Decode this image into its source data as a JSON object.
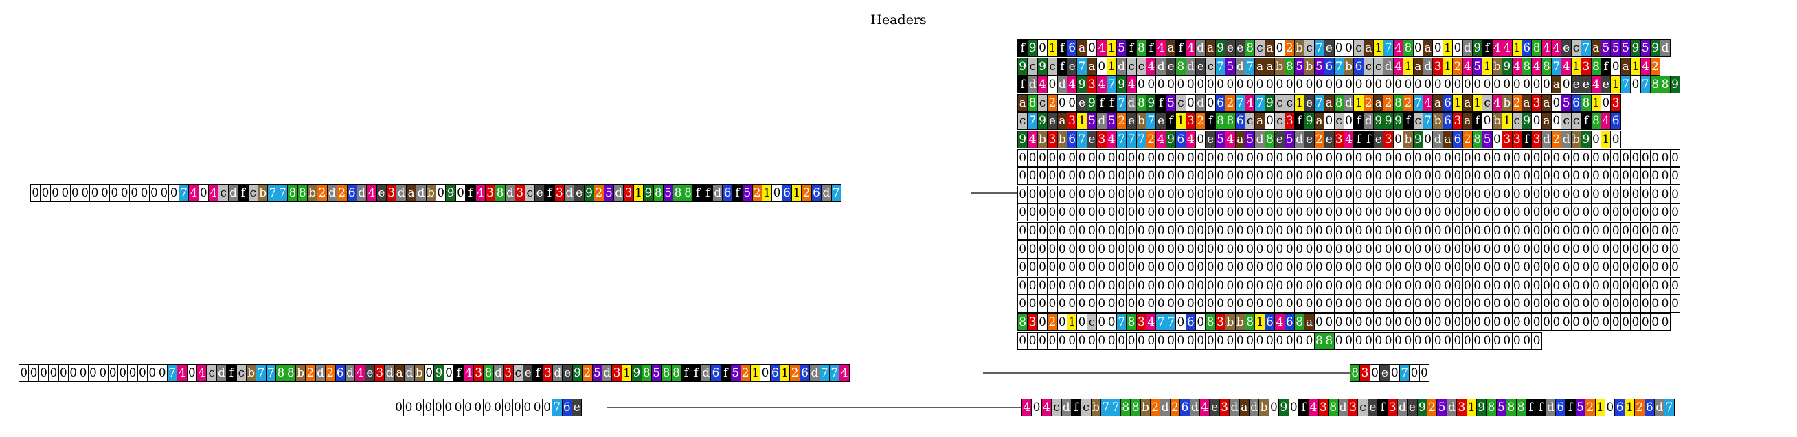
{
  "title": "Headers",
  "palette": {
    "0": "#ffffff",
    "1": "#ffee00",
    "2": "#ef6a00",
    "3": "#dd0000",
    "4": "#e6007e",
    "5": "#6a00c8",
    "6": "#1b3fd8",
    "7": "#1fa5e0",
    "8": "#22a722",
    "9": "#0c6b1c",
    "a": "#5c3310",
    "b": "#8b6a3a",
    "c": "#c0c0c0",
    "d": "#7f7f7f",
    "e": "#404040",
    "f": "#000000"
  },
  "rows": [
    {
      "id": "left-strip-1",
      "text": "0000000000000007404cdfcb7788b2d26d4e3dadb090f438d3cef3de925d3198588ffd6f52106126d7"
    },
    {
      "id": "matrix-row-1",
      "text": "f901f6a0415f8f4af4da9ee8ca02bc7e00ca17480a010d9f4416844ec7a555959d"
    },
    {
      "id": "matrix-row-2",
      "text": "9c9cfe7a01dcc4de8dec75d7aab85b567b6ccd41ad312451b9484874138f0a142"
    },
    {
      "id": "matrix-row-3",
      "text": "fd40d4934794000000000000000000000000000000000000000000a0ee4e1707889"
    },
    {
      "id": "matrix-row-4",
      "text": "a8c200e9ff7d89f5c0d0627479cc1e7a8d12a28274a61a1c4b2a3a0568103"
    },
    {
      "id": "matrix-row-5",
      "text": "c79ea315d52eb7ef132f886ca0c3f9a0c0fd999fc7b63af0b1c90a0ccf846"
    },
    {
      "id": "matrix-row-6",
      "text": "94b3b67e34777249640e54a5d8e5de2e34ffe30b90da6285033f3d2db9010"
    },
    {
      "id": "matrix-zero-1",
      "text": "0000000000000000000000000000000000000000000000000000000000000000000"
    },
    {
      "id": "matrix-zero-2",
      "text": "0000000000000000000000000000000000000000000000000000000000000000000"
    },
    {
      "id": "matrix-zero-3",
      "text": "0000000000000000000000000000000000000000000000000000000000000000000"
    },
    {
      "id": "matrix-zero-4",
      "text": "0000000000000000000000000000000000000000000000000000000000000000000"
    },
    {
      "id": "matrix-zero-5",
      "text": "0000000000000000000000000000000000000000000000000000000000000000000"
    },
    {
      "id": "matrix-zero-6",
      "text": "0000000000000000000000000000000000000000000000000000000000000000000"
    },
    {
      "id": "matrix-zero-7",
      "text": "0000000000000000000000000000000000000000000000000000000000000000000"
    },
    {
      "id": "matrix-zero-8",
      "text": "0000000000000000000000000000000000000000000000000000000000000000000"
    },
    {
      "id": "matrix-zero-9",
      "text": "0000000000000000000000000000000000000000000000000000000000000000000"
    },
    {
      "id": "matrix-row-16",
      "text": "8302010c0078347706083bb816468a000000000000000000000000000000000000"
    },
    {
      "id": "matrix-row-17",
      "text": "00000000000000000000000000000088000000000000000000000"
    },
    {
      "id": "left-strip-2",
      "text": "0000000000000007404cdfcb7788b2d26d4e3dadb090f438d3cef3de925d3198588ffd6f52106126d774"
    },
    {
      "id": "right-strip-2",
      "text": "830e0700"
    },
    {
      "id": "left-strip-3",
      "text": "000000000000000076e"
    },
    {
      "id": "right-strip-3",
      "text": "404cdfcb7788b2d26d4e3dadb090f438d3cef3de925d3198588ffd6f52106126d7"
    }
  ]
}
